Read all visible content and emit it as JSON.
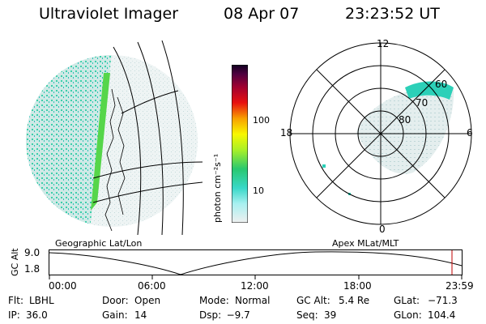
{
  "header": {
    "instrument": "Ultraviolet Imager",
    "date": "08 Apr 07",
    "time": "23:23:52 UT"
  },
  "left_map": {
    "label": "Geographic Lat/Lon"
  },
  "colorbar": {
    "unit_label": "photon cm⁻²s⁻¹",
    "tick_labels": [
      "100",
      "10"
    ]
  },
  "polar_plot": {
    "label": "Apex  MLat/MLT",
    "mlt_labels": {
      "top": "12",
      "left": "18",
      "right": "6",
      "bottom": "0"
    },
    "lat_labels": [
      "60",
      "70",
      "80"
    ]
  },
  "orbit_panel": {
    "ylabel": "GC Alt",
    "yticks": [
      "9.0",
      "1.8"
    ],
    "xticks": [
      "00:00",
      "06:00",
      "12:00",
      "18:00",
      "23:59"
    ],
    "marker_color": "#c00000"
  },
  "status": {
    "row1": [
      {
        "key": "Flt:",
        "value": "LBHL"
      },
      {
        "key": "Door:",
        "value": "Open"
      },
      {
        "key": "Mode:",
        "value": "Normal"
      },
      {
        "key": "GC Alt:",
        "value": "5.4 Re"
      },
      {
        "key": "GLat:",
        "value": "−71.3"
      }
    ],
    "row2": [
      {
        "key": "IP:",
        "value": "36.0"
      },
      {
        "key": "Gain:",
        "value": "14"
      },
      {
        "key": "Dsp:",
        "value": "  −9.7"
      },
      {
        "key": "Seq:",
        "value": "39"
      },
      {
        "key": "GLon:",
        "value": "104.4"
      }
    ]
  }
}
